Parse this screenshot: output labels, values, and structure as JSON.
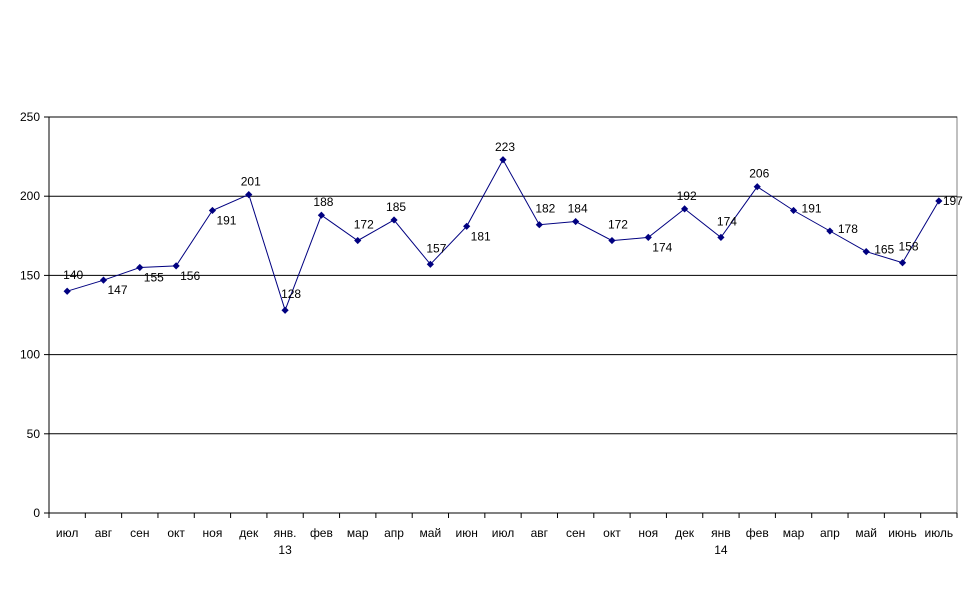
{
  "chart_data": {
    "type": "line",
    "title": "",
    "xlabel": "",
    "ylabel": "",
    "ylim": [
      0,
      250
    ],
    "yticks": [
      0,
      50,
      100,
      150,
      200,
      250
    ],
    "grid": "horizontal",
    "legend": "none",
    "categories": [
      [
        "июл"
      ],
      [
        "авг"
      ],
      [
        "сен"
      ],
      [
        "окт"
      ],
      [
        "ноя"
      ],
      [
        "дек"
      ],
      [
        "янв.",
        "13"
      ],
      [
        "фев"
      ],
      [
        "мар"
      ],
      [
        "апр"
      ],
      [
        "май"
      ],
      [
        "июн"
      ],
      [
        "июл"
      ],
      [
        "авг"
      ],
      [
        "сен"
      ],
      [
        "окт"
      ],
      [
        "ноя"
      ],
      [
        "дек"
      ],
      [
        "янв",
        "14"
      ],
      [
        "фев"
      ],
      [
        "мар"
      ],
      [
        "апр"
      ],
      [
        "май"
      ],
      [
        "июнь"
      ],
      [
        "июль"
      ]
    ],
    "series": [
      {
        "color": "#000080",
        "values": [
          140,
          147,
          155,
          156,
          191,
          201,
          128,
          188,
          172,
          185,
          157,
          181,
          223,
          182,
          184,
          172,
          174,
          192,
          174,
          206,
          191,
          178,
          165,
          158,
          197
        ]
      }
    ]
  }
}
